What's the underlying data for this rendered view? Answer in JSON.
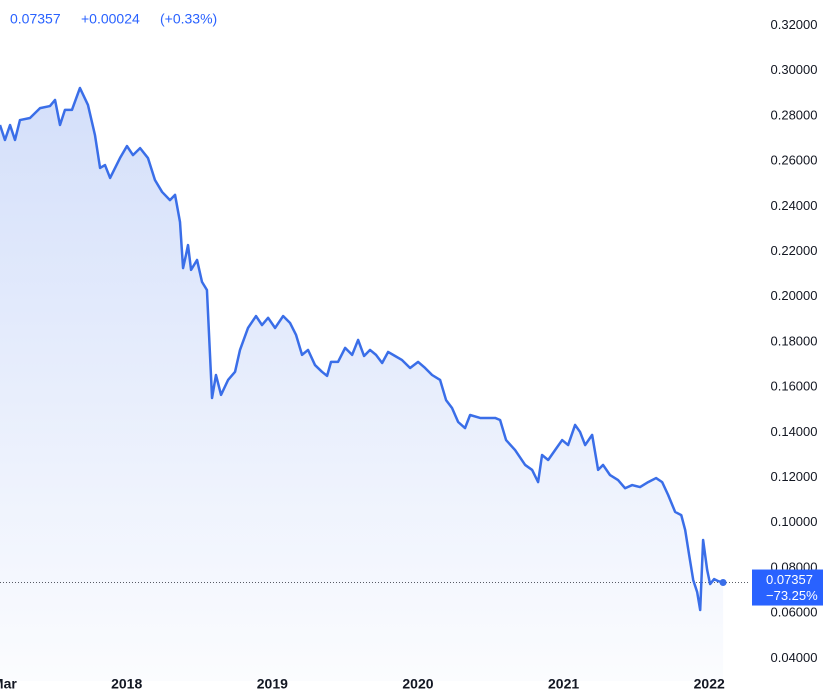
{
  "chart_data": {
    "type": "area-line",
    "header": {
      "price": "0.07357",
      "change": "+0.00024",
      "change_percent": "(+0.33%)"
    },
    "color": "#3a6ee8",
    "x": [
      2017.13,
      2017.164,
      2017.199,
      2017.233,
      2017.267,
      2017.336,
      2017.405,
      2017.473,
      2017.508,
      2017.542,
      2017.576,
      2017.624,
      2017.679,
      2017.734,
      2017.782,
      2017.817,
      2017.851,
      2017.886,
      2017.954,
      2018.002,
      2018.043,
      2018.092,
      2018.146,
      2018.194,
      2018.243,
      2018.297,
      2018.332,
      2018.366,
      2018.387,
      2018.407,
      2018.421,
      2018.442,
      2018.483,
      2018.517,
      2018.551,
      2018.586,
      2018.613,
      2018.648,
      2018.696,
      2018.744,
      2018.778,
      2018.833,
      2018.888,
      2018.929,
      2018.971,
      2019.019,
      2019.074,
      2019.122,
      2019.163,
      2019.204,
      2019.245,
      2019.293,
      2019.341,
      2019.376,
      2019.403,
      2019.451,
      2019.5,
      2019.548,
      2019.589,
      2019.63,
      2019.671,
      2019.712,
      2019.754,
      2019.795,
      2019.843,
      2019.891,
      2019.946,
      2020.001,
      2020.049,
      2020.097,
      2020.152,
      2020.193,
      2020.234,
      2020.276,
      2020.323,
      2020.358,
      2020.427,
      2020.53,
      2020.564,
      2020.605,
      2020.667,
      2020.736,
      2020.784,
      2020.825,
      2020.852,
      2020.894,
      2020.942,
      2020.99,
      2021.031,
      2021.079,
      2021.113,
      2021.148,
      2021.196,
      2021.237,
      2021.271,
      2021.319,
      2021.374,
      2021.422,
      2021.471,
      2021.525,
      2021.581,
      2021.635,
      2021.677,
      2021.718,
      2021.766,
      2021.808,
      2021.835,
      2021.862,
      2021.89,
      2021.917,
      2021.938,
      2021.958,
      2021.986,
      2022.006,
      2022.034,
      2022.061,
      2022.095
    ],
    "values": [
      0.276,
      0.2694,
      0.276,
      0.2694,
      0.2782,
      0.2791,
      0.2835,
      0.2844,
      0.2871,
      0.276,
      0.2827,
      0.2827,
      0.2924,
      0.2849,
      0.2716,
      0.257,
      0.2583,
      0.2526,
      0.2614,
      0.2667,
      0.2627,
      0.2658,
      0.2614,
      0.2517,
      0.2464,
      0.2428,
      0.2451,
      0.2331,
      0.2127,
      0.2185,
      0.2229,
      0.2119,
      0.2163,
      0.2066,
      0.203,
      0.1552,
      0.1654,
      0.1566,
      0.1632,
      0.1668,
      0.1765,
      0.1862,
      0.1915,
      0.1875,
      0.1907,
      0.1862,
      0.1915,
      0.1884,
      0.1831,
      0.1743,
      0.1765,
      0.1698,
      0.1668,
      0.165,
      0.1712,
      0.1712,
      0.1774,
      0.1743,
      0.1809,
      0.1738,
      0.1765,
      0.1743,
      0.1707,
      0.1756,
      0.1738,
      0.172,
      0.1685,
      0.1712,
      0.1685,
      0.1654,
      0.1632,
      0.1543,
      0.1508,
      0.1446,
      0.1419,
      0.1477,
      0.1464,
      0.1464,
      0.1455,
      0.1366,
      0.1322,
      0.1256,
      0.1234,
      0.118,
      0.13,
      0.1278,
      0.1322,
      0.1366,
      0.1344,
      0.1433,
      0.1402,
      0.1344,
      0.1389,
      0.1234,
      0.1256,
      0.1211,
      0.1189,
      0.1153,
      0.1167,
      0.1158,
      0.118,
      0.1198,
      0.118,
      0.1123,
      0.1048,
      0.1034,
      0.0968,
      0.0858,
      0.0747,
      0.0694,
      0.0614,
      0.0924,
      0.0791,
      0.0729,
      0.0751,
      0.0742,
      0.07357
    ],
    "price_line": {
      "value": 0.07357,
      "label": "0.07357",
      "change": "−73.25%"
    },
    "xlim": [
      2017.13,
      2022.28
    ],
    "xticks": [
      {
        "value": 2017.16,
        "label": "Mar"
      },
      2018,
      2019,
      2020,
      2021,
      2022
    ],
    "ylim": [
      0.03,
      0.33
    ],
    "yticks": [
      {
        "value": 0.04,
        "label": "0.04000"
      },
      {
        "value": 0.06,
        "label": "0.06000"
      },
      {
        "value": 0.08,
        "label": "0.08000"
      },
      {
        "value": 0.1,
        "label": "0.10000"
      },
      {
        "value": 0.12,
        "label": "0.12000"
      },
      {
        "value": 0.14,
        "label": "0.14000"
      },
      {
        "value": 0.16,
        "label": "0.16000"
      },
      {
        "value": 0.18,
        "label": "0.18000"
      },
      {
        "value": 0.2,
        "label": "0.20000"
      },
      {
        "value": 0.22,
        "label": "0.22000"
      },
      {
        "value": 0.24,
        "label": "0.24000"
      },
      {
        "value": 0.26,
        "label": "0.26000"
      },
      {
        "value": 0.28,
        "label": "0.28000"
      },
      {
        "value": 0.3,
        "label": "0.30000"
      },
      {
        "value": 0.32,
        "label": "0.32000"
      }
    ],
    "grid": false
  }
}
